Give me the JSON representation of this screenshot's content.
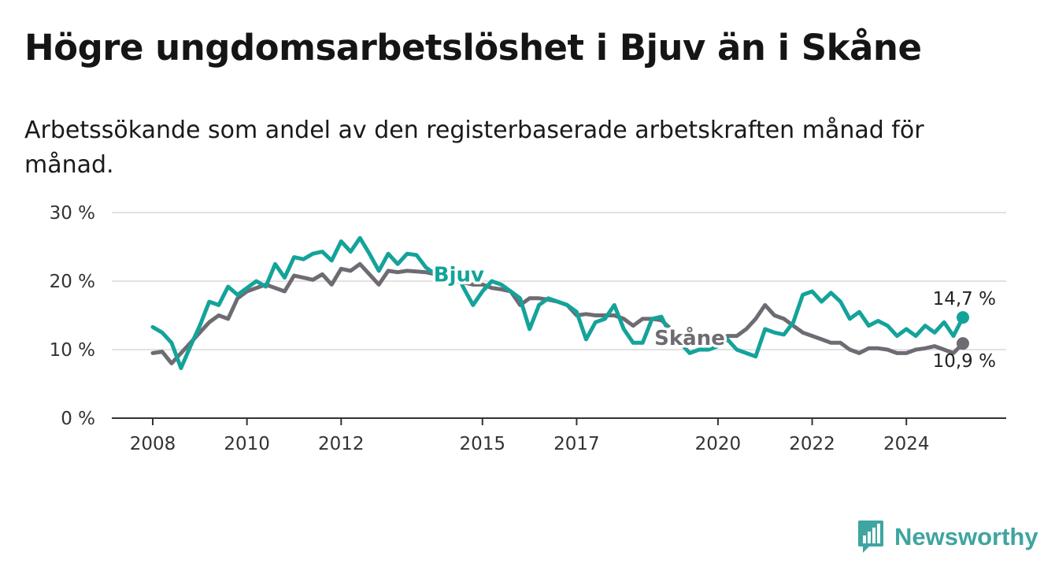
{
  "chart_data": {
    "type": "line",
    "title": "Högre ungdomsarbetslöshet i Bjuv än i Skåne",
    "subtitle": "Arbetssökande som andel av den registerbaserade arbetskraften månad för månad.",
    "xlabel": "",
    "ylabel": "",
    "xlim": [
      2008,
      2025.25
    ],
    "ylim": [
      0,
      30
    ],
    "y_ticks": [
      0,
      10,
      20,
      30
    ],
    "y_tick_labels": [
      "0 %",
      "10 %",
      "20 %",
      "30 %"
    ],
    "x_ticks": [
      2008,
      2010,
      2012,
      2015,
      2017,
      2020,
      2022,
      2024
    ],
    "x_tick_labels": [
      "2008",
      "2010",
      "2012",
      "2015",
      "2017",
      "2020",
      "2022",
      "2024"
    ],
    "grid": true,
    "series": [
      {
        "name": "Bjuv",
        "color": "#14a39a",
        "end_label": "14,7 %",
        "points": [
          [
            2008.0,
            13.3
          ],
          [
            2008.2,
            12.5
          ],
          [
            2008.4,
            11.0
          ],
          [
            2008.6,
            7.3
          ],
          [
            2008.8,
            10.5
          ],
          [
            2009.0,
            13.5
          ],
          [
            2009.2,
            17.0
          ],
          [
            2009.4,
            16.5
          ],
          [
            2009.6,
            19.2
          ],
          [
            2009.8,
            18.0
          ],
          [
            2010.0,
            19.0
          ],
          [
            2010.2,
            20.0
          ],
          [
            2010.4,
            19.2
          ],
          [
            2010.6,
            22.5
          ],
          [
            2010.8,
            20.5
          ],
          [
            2011.0,
            23.5
          ],
          [
            2011.2,
            23.2
          ],
          [
            2011.4,
            24.0
          ],
          [
            2011.6,
            24.3
          ],
          [
            2011.8,
            23.0
          ],
          [
            2012.0,
            25.8
          ],
          [
            2012.2,
            24.3
          ],
          [
            2012.4,
            26.3
          ],
          [
            2012.6,
            24.0
          ],
          [
            2012.8,
            21.5
          ],
          [
            2013.0,
            24.0
          ],
          [
            2013.2,
            22.5
          ],
          [
            2013.4,
            24.0
          ],
          [
            2013.6,
            23.8
          ],
          [
            2013.8,
            22.0
          ],
          [
            2014.0,
            21.0
          ],
          [
            2014.2,
            21.2
          ],
          [
            2014.4,
            21.8
          ],
          [
            2014.6,
            19.0
          ],
          [
            2014.8,
            16.5
          ],
          [
            2015.0,
            18.5
          ],
          [
            2015.2,
            20.0
          ],
          [
            2015.4,
            19.5
          ],
          [
            2015.6,
            18.5
          ],
          [
            2015.8,
            17.5
          ],
          [
            2016.0,
            13.0
          ],
          [
            2016.2,
            16.5
          ],
          [
            2016.4,
            17.5
          ],
          [
            2016.6,
            17.0
          ],
          [
            2016.8,
            16.5
          ],
          [
            2017.0,
            15.5
          ],
          [
            2017.2,
            11.5
          ],
          [
            2017.4,
            14.0
          ],
          [
            2017.6,
            14.5
          ],
          [
            2017.8,
            16.5
          ],
          [
            2018.0,
            13.0
          ],
          [
            2018.2,
            11.0
          ],
          [
            2018.4,
            11.0
          ],
          [
            2018.6,
            14.5
          ],
          [
            2018.8,
            14.8
          ],
          [
            2019.0,
            12.0
          ],
          [
            2019.2,
            11.0
          ],
          [
            2019.4,
            9.5
          ],
          [
            2019.6,
            10.0
          ],
          [
            2019.8,
            10.0
          ],
          [
            2020.0,
            10.5
          ],
          [
            2020.2,
            11.5
          ],
          [
            2020.4,
            10.0
          ],
          [
            2020.6,
            9.5
          ],
          [
            2020.8,
            9.0
          ],
          [
            2021.0,
            13.0
          ],
          [
            2021.2,
            12.5
          ],
          [
            2021.4,
            12.2
          ],
          [
            2021.6,
            14.0
          ],
          [
            2021.8,
            18.0
          ],
          [
            2022.0,
            18.5
          ],
          [
            2022.2,
            17.0
          ],
          [
            2022.4,
            18.3
          ],
          [
            2022.6,
            17.0
          ],
          [
            2022.8,
            14.5
          ],
          [
            2023.0,
            15.5
          ],
          [
            2023.2,
            13.5
          ],
          [
            2023.4,
            14.2
          ],
          [
            2023.6,
            13.5
          ],
          [
            2023.8,
            12.0
          ],
          [
            2024.0,
            13.0
          ],
          [
            2024.2,
            12.0
          ],
          [
            2024.4,
            13.5
          ],
          [
            2024.6,
            12.5
          ],
          [
            2024.8,
            14.0
          ],
          [
            2025.0,
            12.0
          ],
          [
            2025.2,
            14.7
          ]
        ]
      },
      {
        "name": "Skåne",
        "color": "#6e6b72",
        "end_label": "10,9 %",
        "points": [
          [
            2008.0,
            9.5
          ],
          [
            2008.2,
            9.7
          ],
          [
            2008.4,
            8.0
          ],
          [
            2008.6,
            9.5
          ],
          [
            2008.8,
            11.0
          ],
          [
            2009.0,
            12.5
          ],
          [
            2009.2,
            14.0
          ],
          [
            2009.4,
            15.0
          ],
          [
            2009.6,
            14.5
          ],
          [
            2009.8,
            17.5
          ],
          [
            2010.0,
            18.5
          ],
          [
            2010.2,
            19.0
          ],
          [
            2010.4,
            19.5
          ],
          [
            2010.6,
            19.0
          ],
          [
            2010.8,
            18.5
          ],
          [
            2011.0,
            20.8
          ],
          [
            2011.2,
            20.5
          ],
          [
            2011.4,
            20.2
          ],
          [
            2011.6,
            21.0
          ],
          [
            2011.8,
            19.5
          ],
          [
            2012.0,
            21.8
          ],
          [
            2012.2,
            21.5
          ],
          [
            2012.4,
            22.5
          ],
          [
            2012.6,
            21.0
          ],
          [
            2012.8,
            19.5
          ],
          [
            2013.0,
            21.5
          ],
          [
            2013.2,
            21.3
          ],
          [
            2013.4,
            21.5
          ],
          [
            2013.6,
            21.4
          ],
          [
            2013.8,
            21.3
          ],
          [
            2014.0,
            21.0
          ],
          [
            2014.2,
            20.5
          ],
          [
            2014.4,
            20.0
          ],
          [
            2014.6,
            19.8
          ],
          [
            2014.8,
            19.5
          ],
          [
            2015.0,
            19.5
          ],
          [
            2015.2,
            19.0
          ],
          [
            2015.4,
            18.8
          ],
          [
            2015.6,
            18.5
          ],
          [
            2015.8,
            16.5
          ],
          [
            2016.0,
            17.5
          ],
          [
            2016.2,
            17.5
          ],
          [
            2016.4,
            17.3
          ],
          [
            2016.6,
            17.0
          ],
          [
            2016.8,
            16.5
          ],
          [
            2017.0,
            15.0
          ],
          [
            2017.2,
            15.2
          ],
          [
            2017.4,
            15.0
          ],
          [
            2017.6,
            15.0
          ],
          [
            2017.8,
            15.0
          ],
          [
            2018.0,
            14.5
          ],
          [
            2018.2,
            13.5
          ],
          [
            2018.4,
            14.5
          ],
          [
            2018.6,
            14.5
          ],
          [
            2018.8,
            14.3
          ],
          [
            2019.0,
            13.0
          ],
          [
            2019.2,
            12.0
          ],
          [
            2019.4,
            11.0
          ],
          [
            2019.6,
            11.0
          ],
          [
            2019.8,
            10.8
          ],
          [
            2020.0,
            11.5
          ],
          [
            2020.2,
            12.0
          ],
          [
            2020.4,
            12.0
          ],
          [
            2020.6,
            13.0
          ],
          [
            2020.8,
            14.5
          ],
          [
            2021.0,
            16.5
          ],
          [
            2021.2,
            15.0
          ],
          [
            2021.4,
            14.5
          ],
          [
            2021.6,
            13.5
          ],
          [
            2021.8,
            12.5
          ],
          [
            2022.0,
            12.0
          ],
          [
            2022.2,
            11.5
          ],
          [
            2022.4,
            11.0
          ],
          [
            2022.6,
            11.0
          ],
          [
            2022.8,
            10.0
          ],
          [
            2023.0,
            9.5
          ],
          [
            2023.2,
            10.2
          ],
          [
            2023.4,
            10.2
          ],
          [
            2023.6,
            10.0
          ],
          [
            2023.8,
            9.5
          ],
          [
            2024.0,
            9.5
          ],
          [
            2024.2,
            10.0
          ],
          [
            2024.4,
            10.2
          ],
          [
            2024.6,
            10.5
          ],
          [
            2024.8,
            10.0
          ],
          [
            2025.0,
            9.5
          ],
          [
            2025.2,
            10.9
          ]
        ]
      }
    ],
    "series_labels": [
      {
        "text": "Bjuv",
        "series": "Bjuv",
        "at": [
          2014.5,
          21.0
        ]
      },
      {
        "text": "Skåne",
        "series": "Skåne",
        "at": [
          2019.4,
          11.7
        ]
      }
    ]
  },
  "brand": {
    "name": "Newsworthy",
    "color": "#3fa5a0"
  }
}
